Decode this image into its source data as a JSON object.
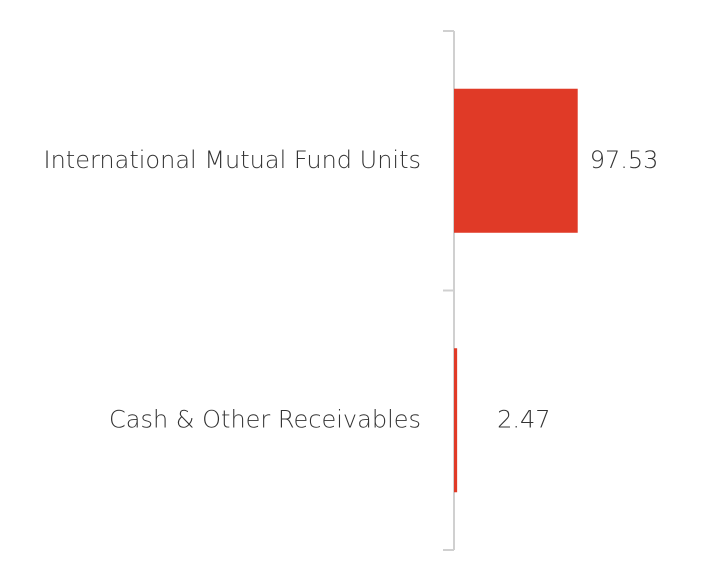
{
  "chart_data": {
    "type": "hbar",
    "categories": [
      "International Mutual Fund Units",
      "Cash & Other Receivables"
    ],
    "values": [
      97.53,
      2.47
    ],
    "color": "#e03a27",
    "xlim": [
      0,
      190
    ]
  }
}
